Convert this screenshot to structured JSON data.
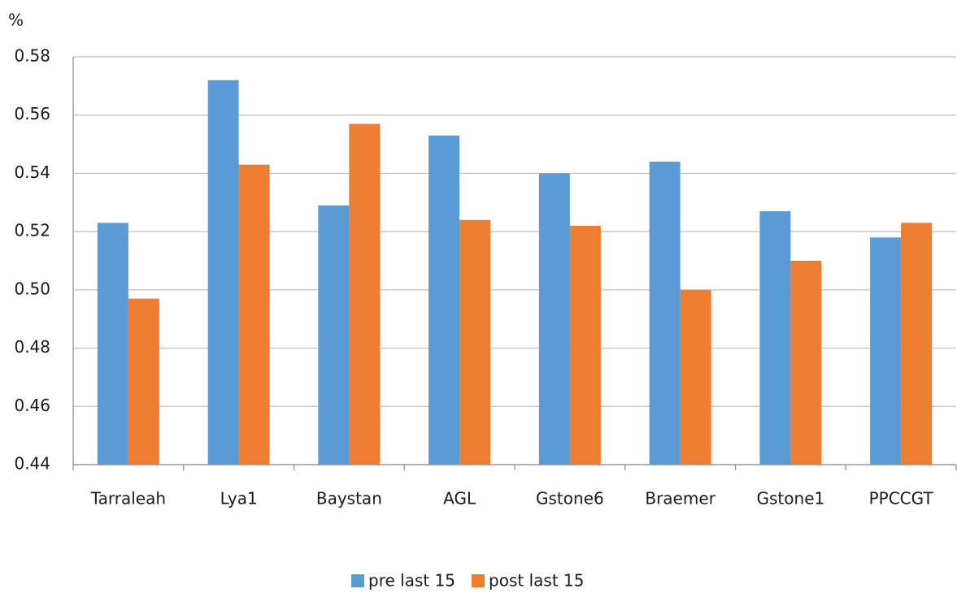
{
  "chart_data": {
    "type": "bar",
    "y_label": "%",
    "categories": [
      "Tarraleah",
      "Lya1",
      "Baystan",
      "AGL",
      "Gstone6",
      "Braemer",
      "Gstone1",
      "PPCCGT"
    ],
    "series": [
      {
        "name": "pre last 15",
        "color": "#5b9bd5",
        "values": [
          0.523,
          0.572,
          0.529,
          0.553,
          0.54,
          0.544,
          0.527,
          0.518
        ]
      },
      {
        "name": "post last 15",
        "color": "#ed7d31",
        "values": [
          0.497,
          0.543,
          0.557,
          0.524,
          0.522,
          0.5,
          0.51,
          0.523
        ]
      }
    ],
    "ylim": [
      0.44,
      0.58
    ],
    "yticks": [
      0.44,
      0.46,
      0.48,
      {
        "value": 0.5,
        "label": "0.50"
      },
      0.52,
      0.54,
      0.56,
      0.58
    ],
    "grid": true,
    "legend": "bottom"
  }
}
